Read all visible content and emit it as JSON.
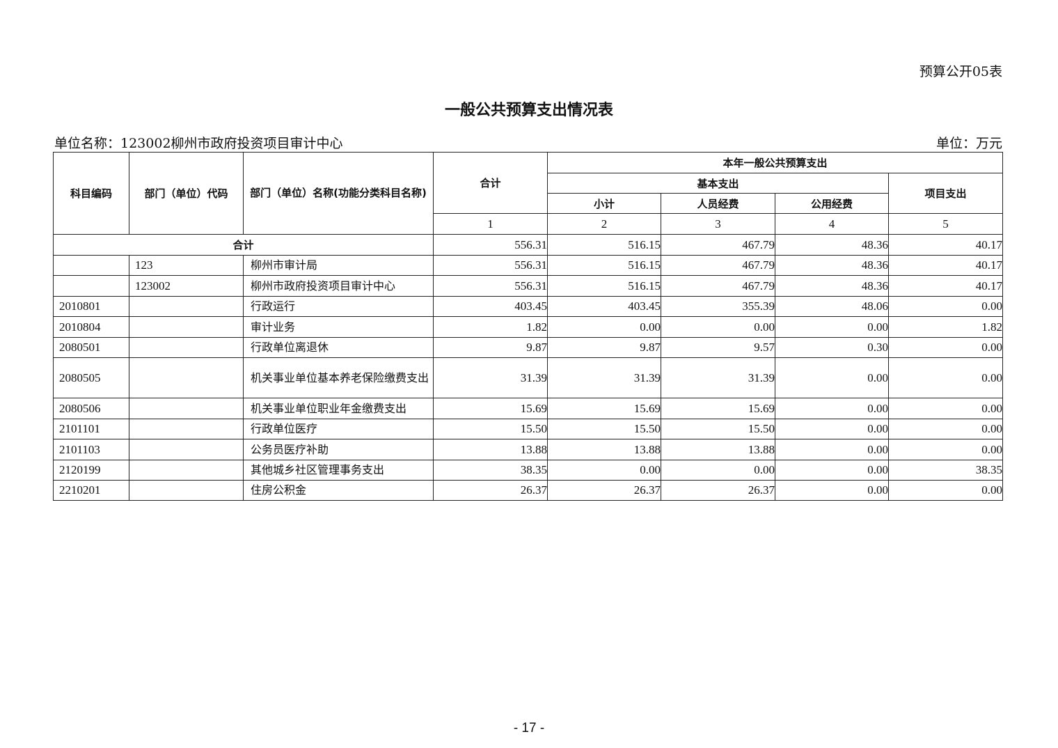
{
  "form_number": "预算公开05表",
  "title": "一般公共预算支出情况表",
  "unit_name": "单位名称：123002柳州市政府投资项目审计中心",
  "unit": "单位：万元",
  "header": {
    "subject_code": "科目编码",
    "dept_code": "部门（单位）代码",
    "dept_name": "部门（单位）名称(功能分类科目名称)",
    "total": "合计",
    "current_year": "本年一般公共预算支出",
    "basic": "基本支出",
    "subtotal": "小计",
    "personnel": "人员经费",
    "public": "公用经费",
    "project": "项目支出",
    "col_numbers": [
      "1",
      "2",
      "3",
      "4",
      "5"
    ]
  },
  "total_row": {
    "label": "合计",
    "values": [
      "556.31",
      "516.15",
      "467.79",
      "48.36",
      "40.17"
    ]
  },
  "rows": [
    {
      "code": "",
      "dept": "123",
      "name": "柳州市审计局",
      "values": [
        "556.31",
        "516.15",
        "467.79",
        "48.36",
        "40.17"
      ]
    },
    {
      "code": "",
      "dept": "123002",
      "name": "柳州市政府投资项目审计中心",
      "values": [
        "556.31",
        "516.15",
        "467.79",
        "48.36",
        "40.17"
      ]
    },
    {
      "code": "2010801",
      "dept": "",
      "name": "行政运行",
      "values": [
        "403.45",
        "403.45",
        "355.39",
        "48.06",
        "0.00"
      ]
    },
    {
      "code": "2010804",
      "dept": "",
      "name": "审计业务",
      "values": [
        "1.82",
        "0.00",
        "0.00",
        "0.00",
        "1.82"
      ]
    },
    {
      "code": "2080501",
      "dept": "",
      "name": "行政单位离退休",
      "values": [
        "9.87",
        "9.87",
        "9.57",
        "0.30",
        "0.00"
      ]
    },
    {
      "code": "2080505",
      "dept": "",
      "name": "机关事业单位基本养老保险缴费支出",
      "values": [
        "31.39",
        "31.39",
        "31.39",
        "0.00",
        "0.00"
      ]
    },
    {
      "code": "2080506",
      "dept": "",
      "name": "机关事业单位职业年金缴费支出",
      "values": [
        "15.69",
        "15.69",
        "15.69",
        "0.00",
        "0.00"
      ]
    },
    {
      "code": "2101101",
      "dept": "",
      "name": "行政单位医疗",
      "values": [
        "15.50",
        "15.50",
        "15.50",
        "0.00",
        "0.00"
      ]
    },
    {
      "code": "2101103",
      "dept": "",
      "name": "公务员医疗补助",
      "values": [
        "13.88",
        "13.88",
        "13.88",
        "0.00",
        "0.00"
      ]
    },
    {
      "code": "2120199",
      "dept": "",
      "name": "其他城乡社区管理事务支出",
      "values": [
        "38.35",
        "0.00",
        "0.00",
        "0.00",
        "38.35"
      ]
    },
    {
      "code": "2210201",
      "dept": "",
      "name": "住房公积金",
      "values": [
        "26.37",
        "26.37",
        "26.37",
        "0.00",
        "0.00"
      ]
    }
  ],
  "page_number": "- 17 -"
}
